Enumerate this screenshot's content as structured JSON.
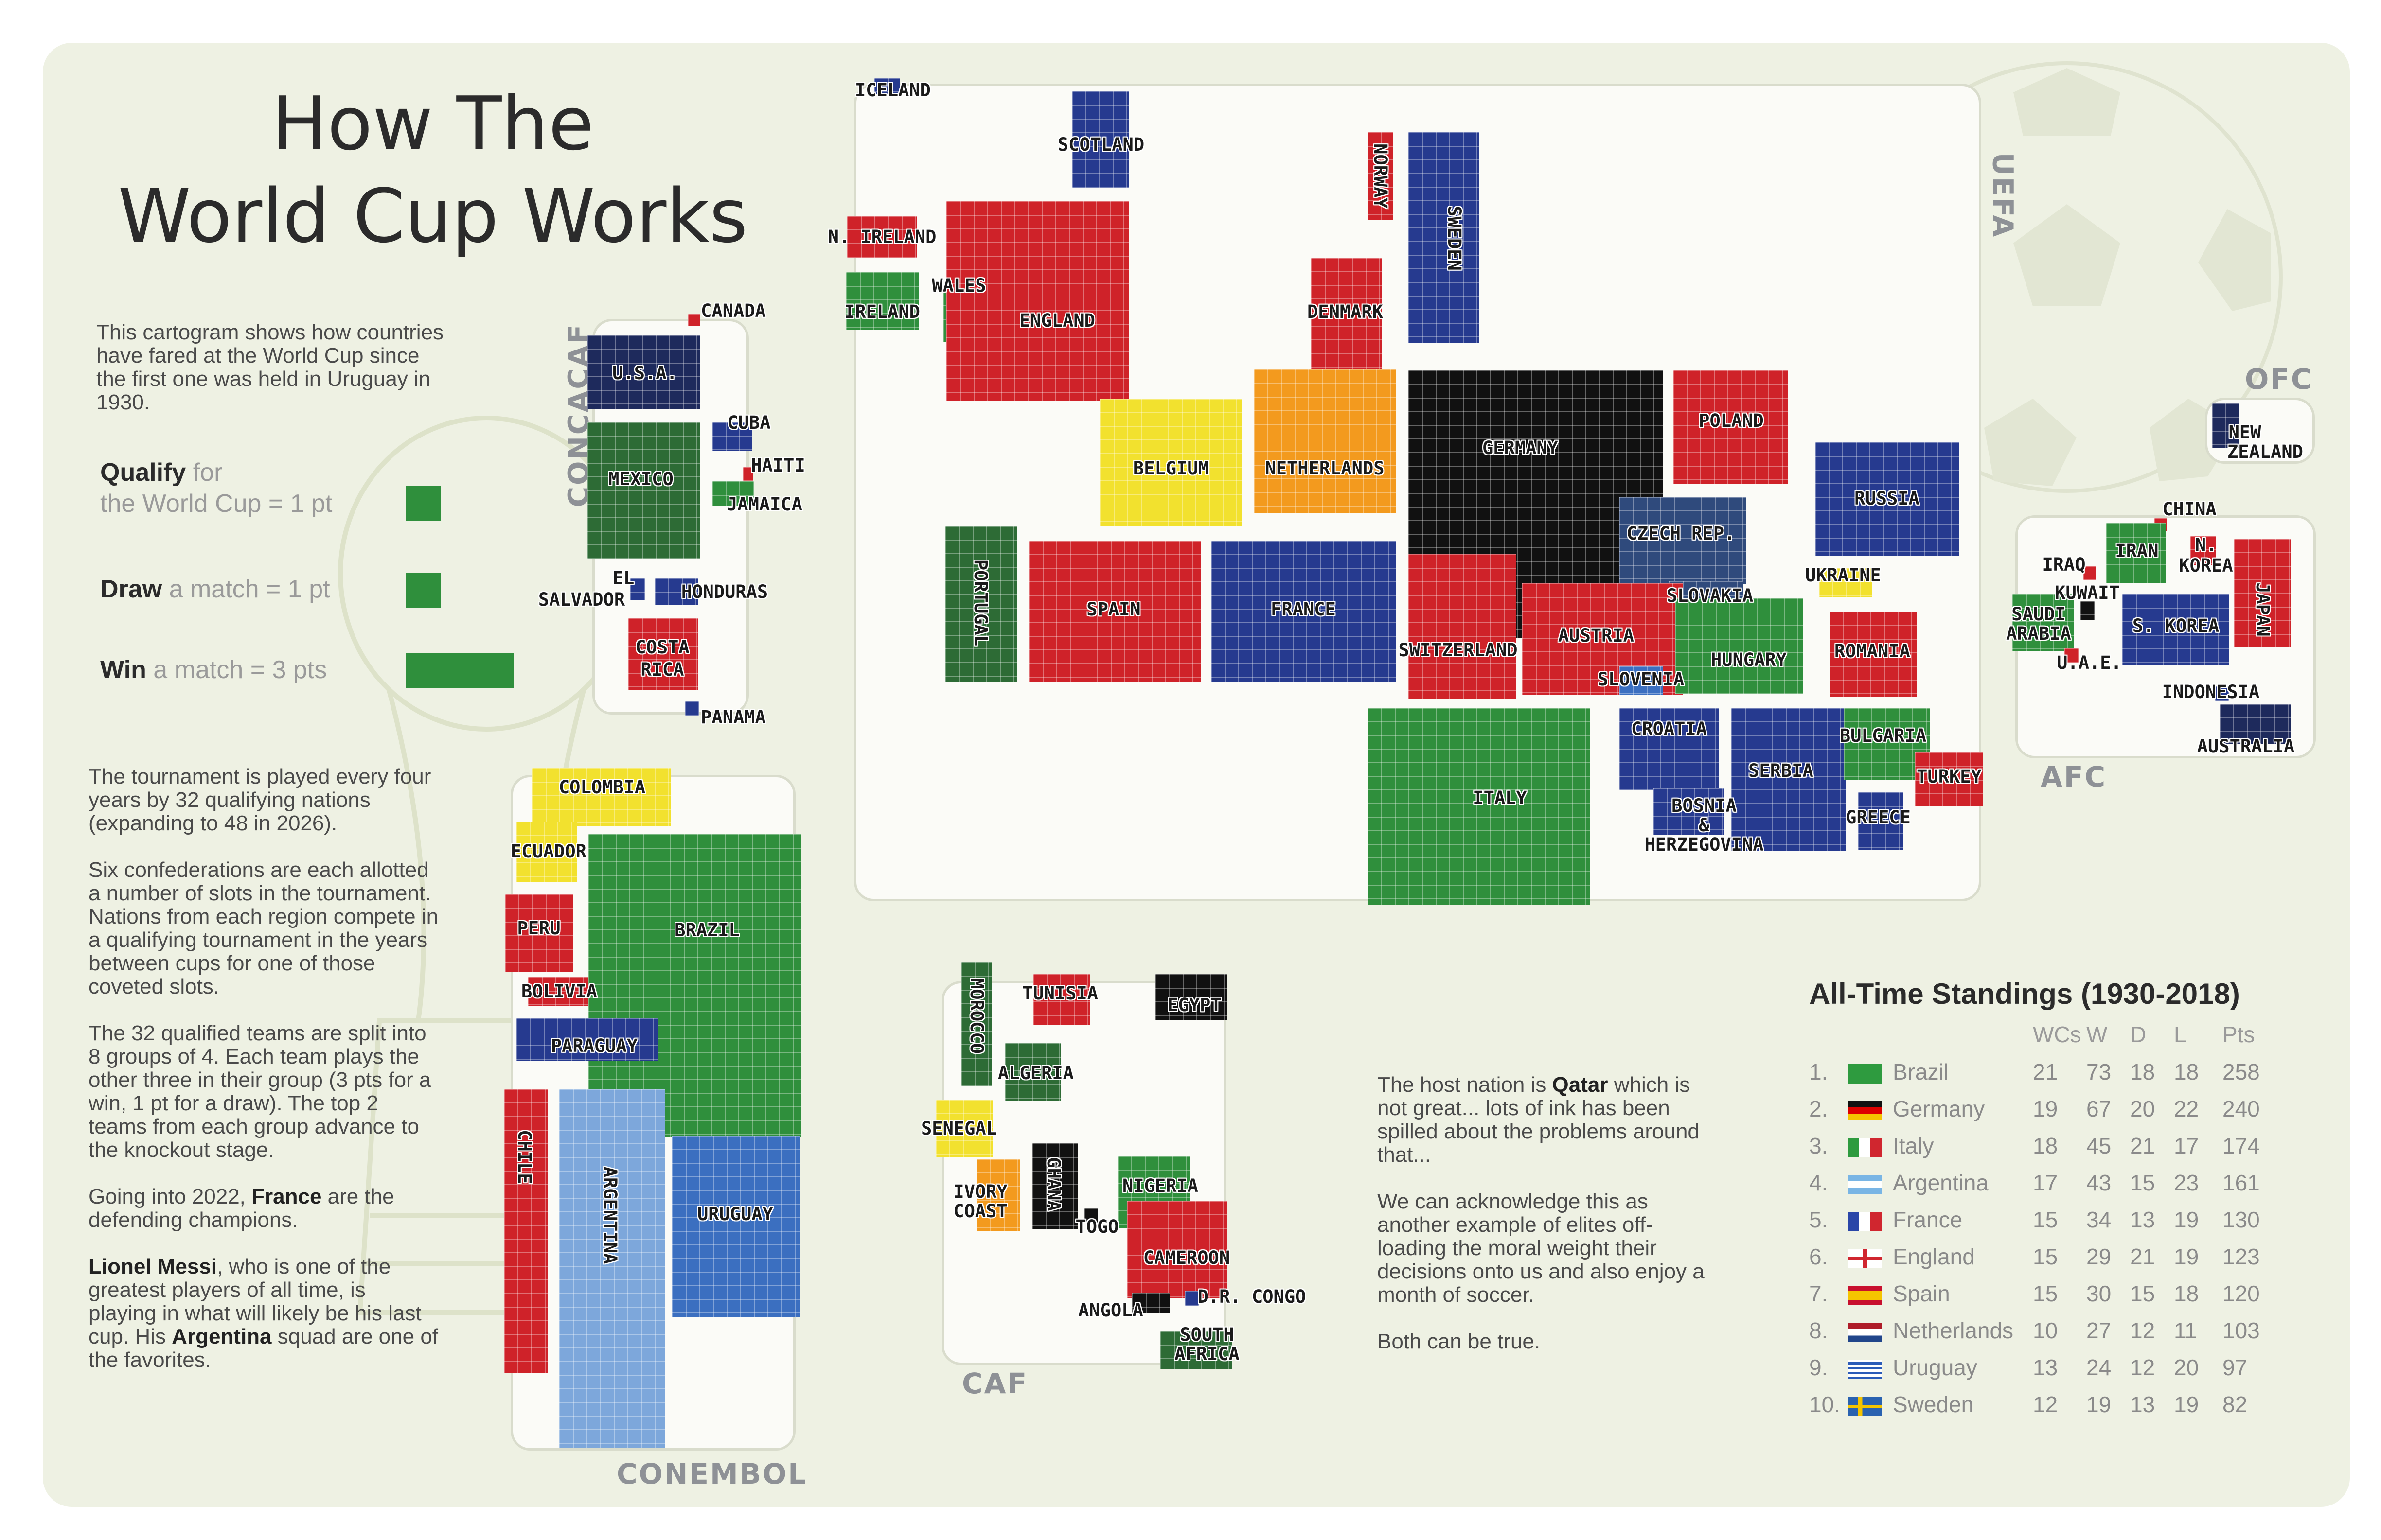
{
  "title_line1": "How The",
  "title_line2": "World Cup Works",
  "intro": "This cartogram shows how countries have fared at the World Cup since the first one was held in Uruguay in 1930.",
  "legend": {
    "qualify_bold": "Qualify",
    "qualify_rest1": " for",
    "qualify_rest2": "the World Cup = 1 pt",
    "draw_bold": "Draw",
    "draw_rest": " a match = 1 pt",
    "win_bold": "Win",
    "win_rest": " a match = 3 pts",
    "color": "#2f8f3c"
  },
  "paragraphs": {
    "p1": "The tournament is played every four years by 32 qualifying nations (expanding to 48 in 2026).",
    "p2": "Six confederations are each allotted a number of slots in the tournament. Nations from each region compete in a qualifying tournament in the years between cups for one of those coveted slots.",
    "p3": "The 32 qualified teams are split into 8 groups of 4. Each team plays the other three in their group (3 pts for a win, 1 pt for a draw). The top 2 teams from each group advance to the knockout stage.",
    "p4_pre": "Going into 2022, ",
    "p4_bold": "France",
    "p4_post": " are the defending champions.",
    "p5_bold1": "Lionel Messi",
    "p5_mid": ", who is one of the greatest players of all time, is playing in what will likely be his last cup. His ",
    "p5_bold2": "Argentina",
    "p5_post": " squad are one of the favorites."
  },
  "host_note": {
    "pre": "The host nation is ",
    "bold": "Qatar",
    "post": " which is not great... lots of ink has been spilled about the problems around that...",
    "p2": "We can acknowledge this as another example of elites off-loading the moral weight their decisions onto us and also enjoy a month of soccer.",
    "p3": "Both can be true."
  },
  "confederations": {
    "uefa": "UEFA",
    "concacaf": "CONCACAF",
    "conembol": "CONEMBOL",
    "caf": "CAF",
    "afc": "AFC",
    "ofc": "OFC"
  },
  "labels": {
    "iceland": "ICELAND",
    "scotland": "SCOTLAND",
    "norway": "NORWAY",
    "sweden": "SWEDEN",
    "n_ireland": "N. IRELAND",
    "wales": "WALES",
    "ireland": "IRELAND",
    "england": "ENGLAND",
    "denmark": "DENMARK",
    "belgium": "BELGIUM",
    "netherlands": "NETHERLANDS",
    "germany": "GERMANY",
    "poland": "POLAND",
    "russia": "RUSSIA",
    "czech": "CZECH REP.",
    "slovakia": "SLOVAKIA",
    "ukraine": "UKRAINE",
    "portugal": "PORTUGAL",
    "spain": "SPAIN",
    "france": "FRANCE",
    "switzerland": "SWITZERLAND",
    "austria": "AUSTRIA",
    "slovenia": "SLOVENIA",
    "hungary": "HUNGARY",
    "romania": "ROMANIA",
    "croatia": "CROATIA",
    "serbia": "SERBIA",
    "bulgaria": "BULGARIA",
    "turkey": "TURKEY",
    "greece": "GREECE",
    "bosnia1": "BOSNIA",
    "bosnia2": "&",
    "bosnia3": "HERZEGOVINA",
    "italy": "ITALY",
    "canada": "CANADA",
    "usa": "U.S.A.",
    "cuba": "CUBA",
    "haiti": "HAITI",
    "jamaica": "JAMAICA",
    "mexico": "MEXICO",
    "el1": "EL",
    "el2": "SALVADOR",
    "honduras": "HONDURAS",
    "costa1": "COSTA",
    "costa2": "RICA",
    "panama": "PANAMA",
    "colombia": "COLOMBIA",
    "ecuador": "ECUADOR",
    "peru": "PERU",
    "bolivia": "BOLIVIA",
    "brazil": "BRAZIL",
    "paraguay": "PARAGUAY",
    "chile": "CHILE",
    "argentina": "ARGENTINA",
    "uruguay": "URUGUAY",
    "morocco": "MOROCCO",
    "tunisia": "TUNISIA",
    "egypt": "EGYPT",
    "algeria": "ALGERIA",
    "senegal": "SENEGAL",
    "ivory1": "IVORY",
    "ivory2": "COAST",
    "ghana": "GHANA",
    "nigeria": "NIGERIA",
    "togo": "TOGO",
    "cameroon": "CAMEROON",
    "angola": "ANGOLA",
    "drcongo": "D.R. CONGO",
    "sa1": "SOUTH",
    "sa2": "AFRICA",
    "china": "CHINA",
    "iraq": "IRAQ",
    "iran": "IRAN",
    "nkorea1": "N.",
    "nkorea2": "KOREA",
    "kuwait": "KUWAIT",
    "saudi1": "SAUDI",
    "saudi2": "ARABIA",
    "skorea": "S. KOREA",
    "japan": "JAPAN",
    "uae": "U.A.E.",
    "indonesia": "INDONESIA",
    "australia": "AUSTRALIA",
    "nz1": "NEW",
    "nz2": "ZEALAND"
  },
  "standings": {
    "title": "All-Time Standings (1930-2018)",
    "headers": [
      "WCs",
      "W",
      "D",
      "L",
      "Pts"
    ],
    "rows": [
      {
        "rank": "1.",
        "team": "Brazil",
        "wcs": "21",
        "w": "73",
        "d": "18",
        "l": "18",
        "pts": "258"
      },
      {
        "rank": "2.",
        "team": "Germany",
        "wcs": "19",
        "w": "67",
        "d": "20",
        "l": "22",
        "pts": "240"
      },
      {
        "rank": "3.",
        "team": "Italy",
        "wcs": "18",
        "w": "45",
        "d": "21",
        "l": "17",
        "pts": "174"
      },
      {
        "rank": "4.",
        "team": "Argentina",
        "wcs": "17",
        "w": "43",
        "d": "15",
        "l": "23",
        "pts": "161"
      },
      {
        "rank": "5.",
        "team": "France",
        "wcs": "15",
        "w": "34",
        "d": "13",
        "l": "19",
        "pts": "130"
      },
      {
        "rank": "6.",
        "team": "England",
        "wcs": "15",
        "w": "29",
        "d": "21",
        "l": "19",
        "pts": "123"
      },
      {
        "rank": "7.",
        "team": "Spain",
        "wcs": "15",
        "w": "30",
        "d": "15",
        "l": "18",
        "pts": "120"
      },
      {
        "rank": "8.",
        "team": "Netherlands",
        "wcs": "10",
        "w": "27",
        "d": "12",
        "l": "11",
        "pts": "103"
      },
      {
        "rank": "9.",
        "team": "Uruguay",
        "wcs": "13",
        "w": "24",
        "d": "12",
        "l": "20",
        "pts": "97"
      },
      {
        "rank": "10.",
        "team": "Sweden",
        "wcs": "12",
        "w": "19",
        "d": "13",
        "l": "19",
        "pts": "82"
      }
    ]
  },
  "colors": {
    "red": "#cf2229",
    "blue": "#263a8f",
    "navy": "#1e2a5c",
    "green": "#2f8f3c",
    "darkgreen": "#2d6b35",
    "yellow": "#f2e12e",
    "orange": "#f39a1e",
    "black": "#111111",
    "lightblue": "#7da7db",
    "midblue": "#3b6fc0",
    "steel": "#2f4a7c",
    "panel": "#eef1e3"
  }
}
